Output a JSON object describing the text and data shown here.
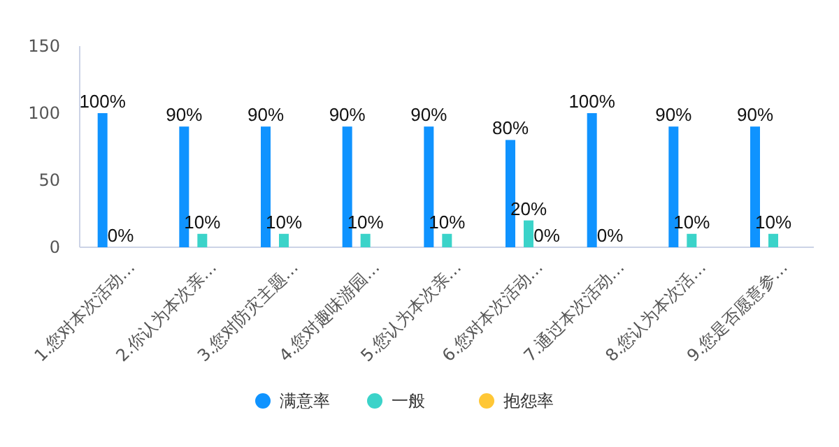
{
  "chart_data": {
    "type": "bar",
    "categories": [
      "1.您对本次活动…",
      "2.你认为本次亲…",
      "3.您对防灾主题…",
      "4.您对趣味游园…",
      "5.您认为本次亲…",
      "6.您对本次活动…",
      "7.通过本次活动…",
      "8.您认为本次活…",
      "9.您是否愿意参…"
    ],
    "series": [
      {
        "name": "满意率",
        "color": "#0f93ff",
        "values": [
          100,
          90,
          90,
          90,
          90,
          80,
          100,
          90,
          90
        ],
        "value_labels": [
          "100%",
          "90%",
          "90%",
          "90%",
          "90%",
          "80%",
          "100%",
          "90%",
          "90%"
        ]
      },
      {
        "name": "一般",
        "color": "#3bd3c9",
        "values": [
          0,
          10,
          10,
          10,
          10,
          20,
          0,
          10,
          10
        ],
        "value_labels": [
          "0%",
          "10%",
          "10%",
          "10%",
          "10%",
          "20%",
          "0%",
          "10%",
          "10%"
        ]
      },
      {
        "name": "抱怨率",
        "color": "#ffc736",
        "values": [
          0,
          0,
          0,
          0,
          0,
          0,
          0,
          0,
          0
        ],
        "value_labels": [
          null,
          null,
          null,
          null,
          null,
          "0%",
          null,
          null,
          null
        ]
      }
    ],
    "ylim": [
      0,
      150
    ],
    "yticks": [
      0,
      50,
      100,
      150
    ],
    "grid": false,
    "legend": "bottom"
  }
}
